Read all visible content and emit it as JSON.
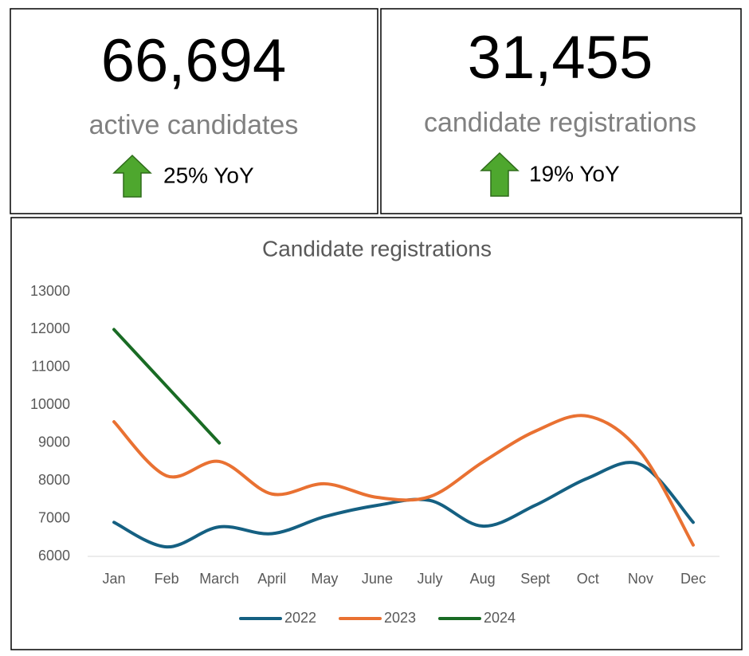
{
  "kpis": [
    {
      "value": "66,694",
      "label": "active candidates",
      "change": "25% YoY"
    },
    {
      "value": "31,455",
      "label": "candidate registrations",
      "change": "19% YoY"
    }
  ],
  "chart_data": {
    "type": "line",
    "title": "Candidate registrations",
    "categories": [
      "Jan",
      "Feb",
      "March",
      "April",
      "May",
      "June",
      "July",
      "Aug",
      "Sept",
      "Oct",
      "Nov",
      "Dec"
    ],
    "series": [
      {
        "name": "2022",
        "color": "#156082",
        "values": [
          6900,
          6250,
          6780,
          6600,
          7050,
          7350,
          7480,
          6800,
          7350,
          8070,
          8430,
          6900
        ]
      },
      {
        "name": "2023",
        "color": "#e97132",
        "values": [
          9560,
          8130,
          8510,
          7650,
          7920,
          7560,
          7580,
          8490,
          9310,
          9710,
          8760,
          6300
        ]
      },
      {
        "name": "2024",
        "color": "#196b24",
        "values": [
          12000,
          10500,
          9000,
          null,
          null,
          null,
          null,
          null,
          null,
          null,
          null,
          null
        ]
      }
    ],
    "ylim": [
      6000,
      13000
    ],
    "yticks": [
      6000,
      7000,
      8000,
      9000,
      10000,
      11000,
      12000,
      13000
    ],
    "grid": false,
    "legend": "bottom"
  }
}
